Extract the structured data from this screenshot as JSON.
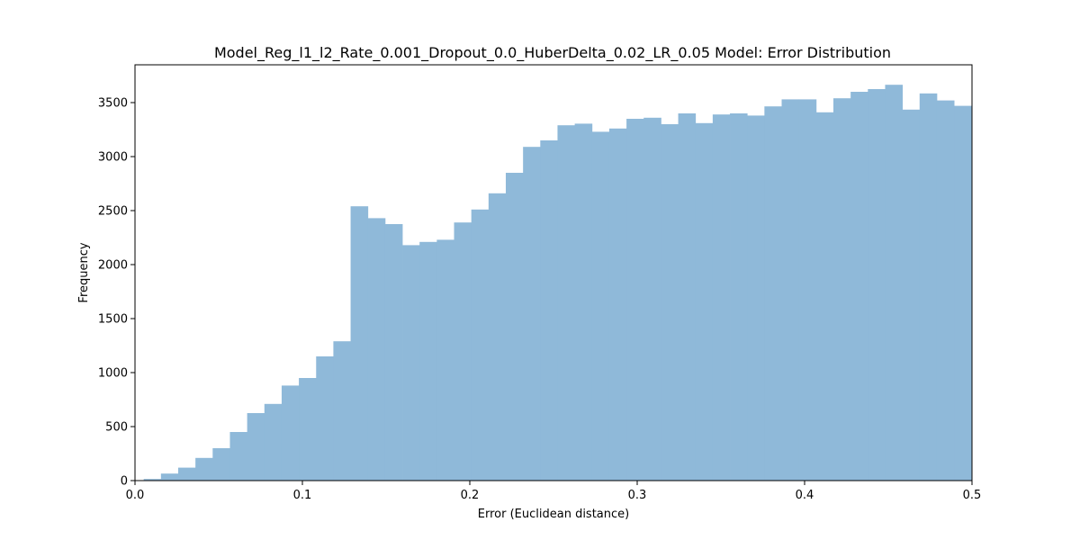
{
  "chart_data": {
    "type": "bar",
    "title": "Model_Reg_l1_l2_Rate_0.001_Dropout_0.0_HuberDelta_0.02_LR_0.05 Model: Error Distribution",
    "xlabel": "Error (Euclidean distance)",
    "ylabel": "Frequency",
    "xlim": [
      0,
      0.5
    ],
    "ylim": [
      0,
      3850
    ],
    "x_ticks": [
      "0.0",
      "0.1",
      "0.2",
      "0.3",
      "0.4",
      "0.5"
    ],
    "y_ticks": [
      "0",
      "500",
      "1000",
      "1500",
      "2000",
      "2500",
      "3000",
      "3500"
    ],
    "bin_edges": [
      0.0052,
      0.0155,
      0.0258,
      0.0361,
      0.0464,
      0.0567,
      0.067,
      0.0773,
      0.0876,
      0.0979,
      0.1082,
      0.1185,
      0.1288,
      0.1391,
      0.1494,
      0.1597,
      0.17,
      0.1803,
      0.1906,
      0.2009,
      0.2112,
      0.2215,
      0.2318,
      0.2421,
      0.2524,
      0.2627,
      0.273,
      0.2833,
      0.2936,
      0.3039,
      0.3142,
      0.3245,
      0.3348,
      0.3451,
      0.3554,
      0.3657,
      0.376,
      0.3863,
      0.3966,
      0.4069,
      0.4172,
      0.4275,
      0.4378,
      0.4481,
      0.4584,
      0.4687,
      0.479,
      0.4893,
      0.4996
    ],
    "values": [
      15,
      65,
      120,
      210,
      300,
      450,
      625,
      710,
      880,
      950,
      1150,
      1290,
      2540,
      2430,
      2375,
      2180,
      2210,
      2230,
      2390,
      2510,
      2660,
      2850,
      3090,
      3150,
      3290,
      3305,
      3230,
      3260,
      3350,
      3360,
      3300,
      3400,
      3310,
      3390,
      3400,
      3380,
      3465,
      3530,
      3530,
      3410,
      3540,
      3600,
      3625,
      3665,
      3435,
      3585,
      3520,
      3470
    ],
    "bar_color": "#8fb9d9",
    "grid": false,
    "legend": "none"
  }
}
